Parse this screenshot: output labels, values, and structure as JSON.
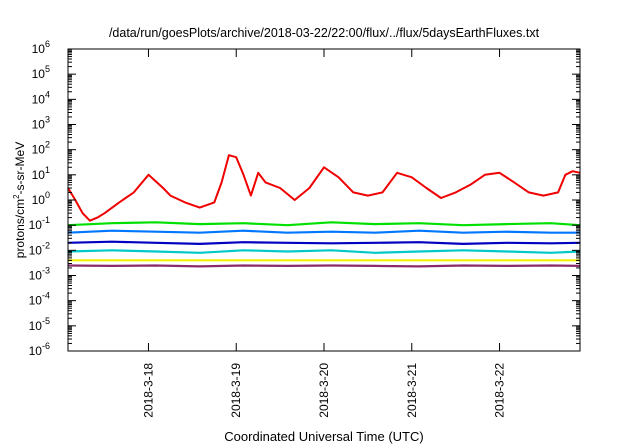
{
  "chart_data": {
    "type": "line",
    "title": "/data/run/goesPlots/archive/2018-03-22/22:00/flux/../flux/5daysEarthFluxes.txt",
    "xlabel": "Coordinated Universal Time (UTC)",
    "ylabel": {
      "prefix": "protons/cm",
      "sup": "2",
      "suffix": "-s-sr-MeV"
    },
    "y_scale": "log",
    "ylim": [
      1e-06,
      1000000.0
    ],
    "xlim": [
      "2018-03-17 02:00",
      "2018-03-22 22:00"
    ],
    "y_ticks": [
      {
        "value": 1e-06,
        "base": "10",
        "exp": "-6"
      },
      {
        "value": 1e-05,
        "base": "10",
        "exp": "-5"
      },
      {
        "value": 0.0001,
        "base": "10",
        "exp": "-4"
      },
      {
        "value": 0.001,
        "base": "10",
        "exp": "-3"
      },
      {
        "value": 0.01,
        "base": "10",
        "exp": "-2"
      },
      {
        "value": 0.1,
        "base": "10",
        "exp": "-1"
      },
      {
        "value": 1,
        "base": "10",
        "exp": "0"
      },
      {
        "value": 10,
        "base": "10",
        "exp": "1"
      },
      {
        "value": 100,
        "base": "10",
        "exp": "2"
      },
      {
        "value": 1000,
        "base": "10",
        "exp": "3"
      },
      {
        "value": 10000,
        "base": "10",
        "exp": "4"
      },
      {
        "value": 100000,
        "base": "10",
        "exp": "5"
      },
      {
        "value": 1000000,
        "base": "10",
        "exp": "6"
      }
    ],
    "x_ticks": [
      {
        "value": "2018-03-18 00:00",
        "label": "2018-3-18"
      },
      {
        "value": "2018-03-19 00:00",
        "label": "2018-3-19"
      },
      {
        "value": "2018-03-20 00:00",
        "label": "2018-3-20"
      },
      {
        "value": "2018-03-21 00:00",
        "label": "2018-3-21"
      },
      {
        "value": "2018-03-22 00:00",
        "label": "2018-3-22"
      }
    ],
    "grid": false,
    "series": [
      {
        "color": "#f00000",
        "x": [
          "2018-03-17 02:00",
          "2018-03-17 04:00",
          "2018-03-17 06:00",
          "2018-03-17 08:00",
          "2018-03-17 10:00",
          "2018-03-17 12:00",
          "2018-03-17 16:00",
          "2018-03-17 20:00",
          "2018-03-18 00:00",
          "2018-03-18 04:00",
          "2018-03-18 06:00",
          "2018-03-18 10:00",
          "2018-03-18 14:00",
          "2018-03-18 18:00",
          "2018-03-18 20:00",
          "2018-03-18 22:00",
          "2018-03-19 00:00",
          "2018-03-19 02:00",
          "2018-03-19 04:00",
          "2018-03-19 06:00",
          "2018-03-19 08:00",
          "2018-03-19 12:00",
          "2018-03-19 16:00",
          "2018-03-19 20:00",
          "2018-03-20 00:00",
          "2018-03-20 04:00",
          "2018-03-20 08:00",
          "2018-03-20 12:00",
          "2018-03-20 16:00",
          "2018-03-20 20:00",
          "2018-03-21 00:00",
          "2018-03-21 04:00",
          "2018-03-21 08:00",
          "2018-03-21 12:00",
          "2018-03-21 16:00",
          "2018-03-21 20:00",
          "2018-03-22 00:00",
          "2018-03-22 04:00",
          "2018-03-22 08:00",
          "2018-03-22 12:00",
          "2018-03-22 16:00",
          "2018-03-22 18:00",
          "2018-03-22 20:00",
          "2018-03-22 22:00"
        ],
        "values": [
          3,
          1,
          0.3,
          0.15,
          0.2,
          0.3,
          0.8,
          2,
          10,
          3,
          1.5,
          0.8,
          0.5,
          0.8,
          5,
          60,
          50,
          10,
          1.5,
          12,
          5,
          3,
          1,
          3,
          20,
          8,
          2,
          1.5,
          2,
          12,
          8,
          3,
          1.2,
          2,
          4,
          10,
          12,
          5,
          2,
          1.5,
          2,
          10,
          14,
          12
        ]
      },
      {
        "color": "#00e000",
        "x": [
          "2018-03-17 02:00",
          "2018-03-17 14:00",
          "2018-03-18 02:00",
          "2018-03-18 14:00",
          "2018-03-19 02:00",
          "2018-03-19 14:00",
          "2018-03-20 02:00",
          "2018-03-20 14:00",
          "2018-03-21 02:00",
          "2018-03-21 14:00",
          "2018-03-22 02:00",
          "2018-03-22 14:00",
          "2018-03-22 22:00"
        ],
        "values": [
          0.1,
          0.12,
          0.13,
          0.11,
          0.12,
          0.1,
          0.13,
          0.11,
          0.12,
          0.1,
          0.11,
          0.12,
          0.1
        ]
      },
      {
        "color": "#0077ff",
        "x": [
          "2018-03-17 02:00",
          "2018-03-17 14:00",
          "2018-03-18 02:00",
          "2018-03-18 14:00",
          "2018-03-19 02:00",
          "2018-03-19 14:00",
          "2018-03-20 02:00",
          "2018-03-20 14:00",
          "2018-03-21 02:00",
          "2018-03-21 14:00",
          "2018-03-22 02:00",
          "2018-03-22 14:00",
          "2018-03-22 22:00"
        ],
        "values": [
          0.05,
          0.06,
          0.055,
          0.05,
          0.06,
          0.05,
          0.055,
          0.05,
          0.06,
          0.05,
          0.055,
          0.05,
          0.05
        ]
      },
      {
        "color": "#0000c0",
        "x": [
          "2018-03-17 02:00",
          "2018-03-17 14:00",
          "2018-03-18 02:00",
          "2018-03-18 14:00",
          "2018-03-19 02:00",
          "2018-03-19 14:00",
          "2018-03-20 02:00",
          "2018-03-20 14:00",
          "2018-03-21 02:00",
          "2018-03-21 14:00",
          "2018-03-22 02:00",
          "2018-03-22 14:00",
          "2018-03-22 22:00"
        ],
        "values": [
          0.02,
          0.022,
          0.02,
          0.018,
          0.021,
          0.02,
          0.019,
          0.02,
          0.021,
          0.018,
          0.02,
          0.019,
          0.02
        ]
      },
      {
        "color": "#00c8c8",
        "x": [
          "2018-03-17 02:00",
          "2018-03-17 14:00",
          "2018-03-18 02:00",
          "2018-03-18 14:00",
          "2018-03-19 02:00",
          "2018-03-19 14:00",
          "2018-03-20 02:00",
          "2018-03-20 14:00",
          "2018-03-21 02:00",
          "2018-03-21 14:00",
          "2018-03-22 02:00",
          "2018-03-22 14:00",
          "2018-03-22 22:00"
        ],
        "values": [
          0.009,
          0.01,
          0.009,
          0.008,
          0.01,
          0.009,
          0.01,
          0.008,
          0.009,
          0.01,
          0.009,
          0.008,
          0.009
        ]
      },
      {
        "color": "#f0f000",
        "x": [
          "2018-03-17 02:00",
          "2018-03-18 02:00",
          "2018-03-19 02:00",
          "2018-03-20 02:00",
          "2018-03-21 02:00",
          "2018-03-22 02:00",
          "2018-03-22 22:00"
        ],
        "values": [
          0.004,
          0.004,
          0.004,
          0.004,
          0.004,
          0.004,
          0.004
        ]
      },
      {
        "color": "#8a2a6a",
        "x": [
          "2018-03-17 02:00",
          "2018-03-17 14:00",
          "2018-03-18 02:00",
          "2018-03-18 14:00",
          "2018-03-19 02:00",
          "2018-03-19 14:00",
          "2018-03-20 02:00",
          "2018-03-20 14:00",
          "2018-03-21 02:00",
          "2018-03-21 14:00",
          "2018-03-22 02:00",
          "2018-03-22 14:00",
          "2018-03-22 22:00"
        ],
        "values": [
          0.0025,
          0.0024,
          0.0025,
          0.0023,
          0.0025,
          0.0024,
          0.0025,
          0.0024,
          0.0023,
          0.0025,
          0.0024,
          0.0025,
          0.0024
        ]
      }
    ]
  }
}
